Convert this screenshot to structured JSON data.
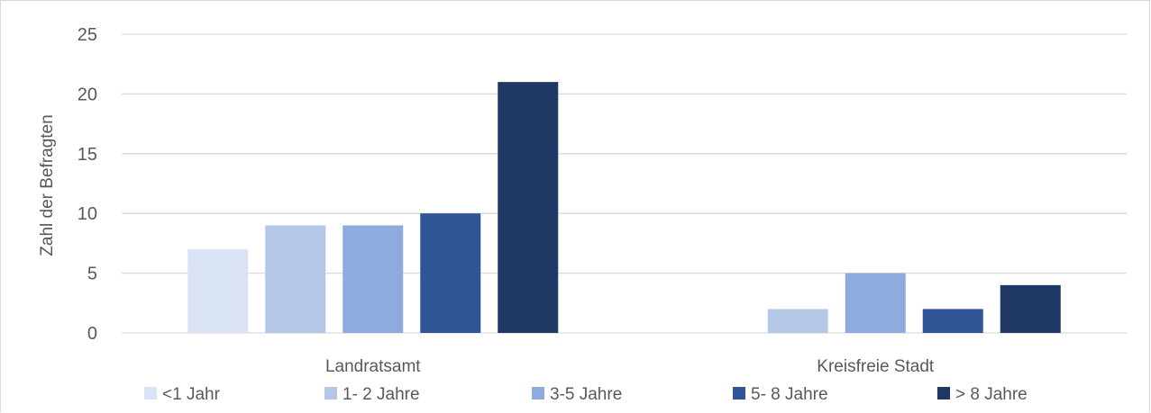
{
  "chart_data": {
    "type": "bar",
    "title": "",
    "xlabel": "",
    "ylabel": "Zahl der Befragten",
    "ylim": [
      0,
      25
    ],
    "yticks": [
      0,
      5,
      10,
      15,
      20,
      25
    ],
    "grid": true,
    "legend_position": "bottom",
    "categories": [
      "Landratsamt",
      "Kreisfreie Stadt"
    ],
    "series": [
      {
        "name": "<1 Jahr",
        "color": "#dae3f3",
        "values": [
          7,
          0
        ]
      },
      {
        "name": "1- 2 Jahre",
        "color": "#b4c7e7",
        "values": [
          9,
          2
        ]
      },
      {
        "name": "3-5 Jahre",
        "color": "#8faadc",
        "values": [
          9,
          5
        ]
      },
      {
        "name": "5- 8 Jahre",
        "color": "#2f5597",
        "values": [
          10,
          2
        ]
      },
      {
        "name": "> 8 Jahre",
        "color": "#203864",
        "values": [
          21,
          4
        ]
      }
    ]
  }
}
